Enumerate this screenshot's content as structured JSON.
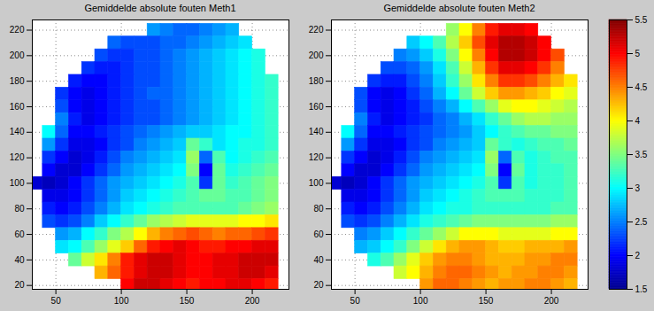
{
  "chart_data": [
    {
      "type": "heatmap",
      "title": "Gemiddelde absolute fouten Meth1",
      "x": [
        35,
        45,
        55,
        65,
        75,
        85,
        95,
        105,
        115,
        125,
        135,
        145,
        155,
        165,
        175,
        185,
        195,
        205,
        215
      ],
      "y": [
        220,
        210,
        200,
        190,
        180,
        170,
        160,
        150,
        140,
        130,
        120,
        110,
        100,
        90,
        80,
        70,
        60,
        50,
        40,
        30,
        20
      ],
      "values": [
        [
          null,
          null,
          null,
          null,
          null,
          null,
          null,
          null,
          null,
          2.6,
          2.5,
          2.4,
          2.4,
          2.5,
          2.6,
          2.7,
          null,
          null,
          null
        ],
        [
          null,
          null,
          null,
          null,
          null,
          null,
          2.4,
          2.3,
          2.3,
          2.3,
          2.4,
          2.4,
          2.5,
          2.6,
          2.7,
          2.8,
          2.9,
          null,
          null
        ],
        [
          null,
          null,
          null,
          null,
          null,
          2.3,
          2.2,
          2.2,
          2.3,
          2.3,
          2.4,
          2.5,
          2.6,
          2.7,
          2.8,
          2.9,
          3.0,
          3.1,
          null
        ],
        [
          null,
          null,
          null,
          null,
          2.2,
          2.1,
          2.1,
          2.2,
          2.3,
          2.3,
          2.4,
          2.5,
          2.6,
          2.7,
          2.8,
          2.9,
          3.0,
          3.1,
          null
        ],
        [
          null,
          null,
          null,
          2.1,
          2.0,
          2.0,
          2.1,
          2.2,
          2.3,
          2.3,
          2.4,
          2.5,
          2.6,
          2.7,
          2.8,
          2.9,
          3.0,
          3.1,
          3.2
        ],
        [
          null,
          null,
          2.2,
          2.0,
          1.9,
          2.0,
          2.1,
          2.2,
          2.3,
          2.4,
          2.4,
          2.5,
          2.6,
          2.7,
          2.8,
          2.9,
          3.0,
          3.1,
          3.2
        ],
        [
          null,
          null,
          2.3,
          2.0,
          1.9,
          2.0,
          2.1,
          2.2,
          2.3,
          2.3,
          2.4,
          2.5,
          2.6,
          2.7,
          2.8,
          2.9,
          3.0,
          3.1,
          3.2
        ],
        [
          null,
          null,
          2.5,
          2.1,
          1.9,
          2.0,
          2.1,
          2.2,
          2.3,
          2.3,
          2.4,
          2.5,
          2.6,
          2.7,
          2.8,
          2.9,
          3.0,
          3.1,
          3.2
        ],
        [
          null,
          3.0,
          2.4,
          2.0,
          2.0,
          2.1,
          2.2,
          2.3,
          2.4,
          2.5,
          2.6,
          2.7,
          2.8,
          2.8,
          2.9,
          3.0,
          3.0,
          3.1,
          3.2
        ],
        [
          null,
          2.6,
          2.2,
          1.9,
          1.9,
          2.0,
          2.2,
          2.3,
          2.5,
          2.6,
          2.7,
          2.8,
          3.4,
          3.2,
          2.9,
          3.0,
          3.1,
          3.1,
          3.2
        ],
        [
          null,
          2.2,
          2.0,
          1.8,
          1.9,
          2.1,
          2.3,
          2.5,
          2.6,
          2.7,
          2.8,
          2.9,
          3.6,
          2.4,
          3.3,
          3.0,
          3.1,
          3.2,
          3.3
        ],
        [
          null,
          2.0,
          1.8,
          1.8,
          2.0,
          2.2,
          2.4,
          2.6,
          2.7,
          2.8,
          2.9,
          3.0,
          3.5,
          2.0,
          3.4,
          3.1,
          3.2,
          3.3,
          3.4
        ],
        [
          1.8,
          1.7,
          1.8,
          2.0,
          2.2,
          2.4,
          2.6,
          2.7,
          2.8,
          2.9,
          3.0,
          3.1,
          3.3,
          2.2,
          3.4,
          3.2,
          3.3,
          3.4,
          3.5
        ],
        [
          null,
          1.9,
          1.9,
          2.0,
          2.2,
          2.4,
          2.6,
          2.8,
          2.9,
          3.0,
          3.1,
          3.2,
          3.3,
          3.4,
          3.4,
          3.3,
          3.3,
          3.4,
          3.5
        ],
        [
          null,
          2.1,
          2.0,
          2.1,
          2.3,
          2.5,
          2.7,
          2.9,
          3.0,
          3.1,
          3.2,
          3.3,
          3.3,
          3.3,
          3.3,
          3.3,
          3.4,
          3.5,
          3.6
        ],
        [
          null,
          2.3,
          2.2,
          2.3,
          2.5,
          2.8,
          3.0,
          3.2,
          3.4,
          3.6,
          3.7,
          3.8,
          3.9,
          3.9,
          3.9,
          3.9,
          4.0,
          4.0,
          4.1
        ],
        [
          null,
          null,
          2.6,
          2.7,
          3.0,
          3.2,
          3.5,
          3.7,
          4.0,
          4.3,
          4.5,
          4.6,
          4.7,
          4.6,
          4.5,
          4.6,
          4.6,
          4.7,
          4.8
        ],
        [
          null,
          null,
          2.9,
          3.0,
          3.3,
          3.6,
          3.9,
          4.2,
          4.6,
          4.9,
          5.0,
          5.1,
          5.0,
          4.9,
          4.9,
          5.0,
          5.0,
          5.1,
          5.1
        ],
        [
          null,
          null,
          null,
          3.4,
          3.8,
          4.1,
          4.5,
          4.9,
          5.1,
          5.2,
          5.2,
          5.1,
          5.0,
          5.0,
          5.1,
          5.1,
          5.2,
          5.2,
          5.2
        ],
        [
          null,
          null,
          null,
          null,
          null,
          4.3,
          4.6,
          4.9,
          5.1,
          5.2,
          5.2,
          5.1,
          5.0,
          5.0,
          5.1,
          5.1,
          5.2,
          5.2,
          5.1
        ],
        [
          null,
          null,
          null,
          null,
          null,
          null,
          null,
          5.0,
          5.2,
          5.2,
          5.1,
          5.0,
          4.9,
          5.0,
          5.0,
          5.1,
          5.1,
          5.0,
          4.9
        ]
      ],
      "xlim": [
        32,
        228
      ],
      "xticks": [
        50,
        100,
        150,
        200
      ],
      "ylim": [
        17,
        228
      ],
      "yticks": [
        20,
        40,
        60,
        80,
        100,
        120,
        140,
        160,
        180,
        200,
        220
      ],
      "grid": true
    },
    {
      "type": "heatmap",
      "title": "Gemiddelde absolute fouten Meth2",
      "x": [
        35,
        45,
        55,
        65,
        75,
        85,
        95,
        105,
        115,
        125,
        135,
        145,
        155,
        165,
        175,
        185,
        195,
        205,
        215
      ],
      "y": [
        220,
        210,
        200,
        190,
        180,
        170,
        160,
        150,
        140,
        130,
        120,
        110,
        100,
        90,
        80,
        70,
        60,
        50,
        40,
        30,
        20
      ],
      "values": [
        [
          null,
          null,
          null,
          null,
          null,
          null,
          null,
          null,
          null,
          3.6,
          4.0,
          4.5,
          4.9,
          5.1,
          5.1,
          5.0,
          null,
          null,
          null
        ],
        [
          null,
          null,
          null,
          null,
          null,
          null,
          2.8,
          3.0,
          3.3,
          3.7,
          4.2,
          4.7,
          5.1,
          5.3,
          5.3,
          5.2,
          5.0,
          null,
          null
        ],
        [
          null,
          null,
          null,
          null,
          null,
          2.5,
          2.6,
          2.8,
          3.1,
          3.5,
          4.0,
          4.5,
          5.0,
          5.3,
          5.3,
          5.2,
          5.0,
          4.7,
          null
        ],
        [
          null,
          null,
          null,
          null,
          2.3,
          2.3,
          2.4,
          2.6,
          2.9,
          3.3,
          3.8,
          4.3,
          4.8,
          5.1,
          5.1,
          5.0,
          4.8,
          4.5,
          null
        ],
        [
          null,
          null,
          null,
          2.2,
          2.1,
          2.1,
          2.3,
          2.5,
          2.8,
          3.2,
          3.6,
          4.1,
          4.5,
          4.8,
          4.8,
          4.7,
          4.5,
          4.3,
          4.1
        ],
        [
          null,
          null,
          2.3,
          2.0,
          1.9,
          2.0,
          2.2,
          2.4,
          2.7,
          3.0,
          3.4,
          3.8,
          4.2,
          4.4,
          4.4,
          4.3,
          4.2,
          4.0,
          3.9
        ],
        [
          null,
          null,
          2.3,
          2.0,
          1.9,
          2.0,
          2.1,
          2.3,
          2.5,
          2.7,
          3.0,
          3.3,
          3.6,
          3.9,
          4.0,
          4.0,
          3.9,
          3.8,
          3.7
        ],
        [
          null,
          null,
          2.5,
          2.1,
          1.9,
          2.0,
          2.1,
          2.2,
          2.4,
          2.5,
          2.7,
          2.9,
          3.2,
          3.4,
          3.6,
          3.7,
          3.7,
          3.6,
          3.6
        ],
        [
          null,
          3.0,
          2.4,
          2.0,
          2.0,
          2.1,
          2.2,
          2.3,
          2.4,
          2.5,
          2.6,
          2.8,
          3.0,
          3.2,
          3.3,
          3.4,
          3.4,
          3.5,
          3.5
        ],
        [
          null,
          2.6,
          2.2,
          1.9,
          1.9,
          2.0,
          2.2,
          2.3,
          2.5,
          2.6,
          2.7,
          2.8,
          3.4,
          3.2,
          3.1,
          3.2,
          3.3,
          3.3,
          3.4
        ],
        [
          null,
          2.2,
          2.0,
          1.8,
          1.9,
          2.1,
          2.3,
          2.5,
          2.6,
          2.7,
          2.8,
          2.9,
          3.6,
          2.4,
          3.3,
          3.1,
          3.2,
          3.3,
          3.3
        ],
        [
          null,
          2.0,
          1.8,
          1.8,
          2.0,
          2.2,
          2.4,
          2.6,
          2.7,
          2.8,
          2.9,
          3.0,
          3.5,
          2.0,
          3.4,
          3.1,
          3.2,
          3.2,
          3.3
        ],
        [
          1.8,
          1.7,
          1.8,
          2.0,
          2.2,
          2.4,
          2.6,
          2.7,
          2.8,
          2.9,
          3.0,
          3.1,
          3.3,
          2.2,
          3.3,
          3.1,
          3.2,
          3.2,
          3.3
        ],
        [
          null,
          1.9,
          1.9,
          2.0,
          2.2,
          2.4,
          2.6,
          2.8,
          2.9,
          3.0,
          3.1,
          3.2,
          3.3,
          3.3,
          3.3,
          3.2,
          3.2,
          3.2,
          3.3
        ],
        [
          null,
          2.1,
          2.0,
          2.1,
          2.3,
          2.5,
          2.7,
          2.9,
          3.0,
          3.1,
          3.1,
          3.2,
          3.2,
          3.2,
          3.2,
          3.2,
          3.2,
          3.3,
          3.3
        ],
        [
          null,
          2.3,
          2.2,
          2.3,
          2.5,
          2.7,
          2.9,
          3.1,
          3.2,
          3.3,
          3.4,
          3.5,
          3.5,
          3.5,
          3.5,
          3.5,
          3.5,
          3.6,
          3.6
        ],
        [
          null,
          null,
          2.5,
          2.6,
          2.8,
          3.0,
          3.2,
          3.4,
          3.6,
          3.8,
          4.0,
          4.0,
          4.0,
          3.9,
          3.9,
          3.9,
          3.9,
          4.0,
          4.0
        ],
        [
          null,
          null,
          2.7,
          2.8,
          3.0,
          3.2,
          3.5,
          3.8,
          4.1,
          4.3,
          4.4,
          4.4,
          4.3,
          4.2,
          4.2,
          4.3,
          4.3,
          4.3,
          4.4
        ],
        [
          null,
          null,
          null,
          3.1,
          3.3,
          3.6,
          3.9,
          4.2,
          4.4,
          4.5,
          4.5,
          4.4,
          4.3,
          4.3,
          4.3,
          4.4,
          4.4,
          4.5,
          4.5
        ],
        [
          null,
          null,
          null,
          null,
          null,
          3.8,
          4.0,
          4.3,
          4.5,
          4.6,
          4.6,
          4.5,
          4.4,
          4.3,
          4.4,
          4.4,
          4.5,
          4.5,
          4.4
        ],
        [
          null,
          null,
          null,
          null,
          null,
          null,
          null,
          4.4,
          4.6,
          4.6,
          4.5,
          4.4,
          4.3,
          4.4,
          4.4,
          4.5,
          4.5,
          4.4,
          4.3
        ]
      ],
      "xlim": [
        32,
        228
      ],
      "xticks": [
        50,
        100,
        150,
        200
      ],
      "ylim": [
        17,
        228
      ],
      "yticks": [
        20,
        40,
        60,
        80,
        100,
        120,
        140,
        160,
        180,
        200,
        220
      ],
      "grid": true
    }
  ],
  "colorbar": {
    "range": [
      1.5,
      5.5
    ],
    "ticks": [
      1.5,
      2,
      2.5,
      3,
      3.5,
      4,
      4.5,
      5,
      5.5
    ]
  }
}
